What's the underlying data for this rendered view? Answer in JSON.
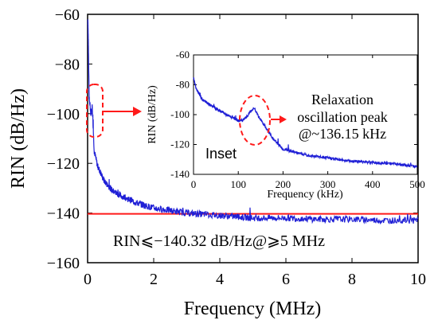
{
  "chart_data": [
    {
      "type": "line",
      "xlabel": "Frequency (MHz)",
      "ylabel": "RIN (dB/Hz)",
      "xlim": [
        0,
        10
      ],
      "ylim": [
        -160,
        -60
      ],
      "xticks": [
        "0",
        "2",
        "4",
        "6",
        "8",
        "10"
      ],
      "yticks": [
        "−160",
        "−140",
        "−120",
        "−100",
        "−80",
        "−60"
      ],
      "series": [
        {
          "color": "#1f1fd6",
          "x": [
            0.01,
            0.05,
            0.1,
            0.14,
            0.2,
            0.3,
            0.5,
            0.75,
            1.0,
            1.5,
            2.0,
            3.0,
            4.0,
            5.0,
            6.0,
            7.0,
            8.0,
            9.0,
            10.0
          ],
          "values": [
            -62,
            -94,
            -100,
            -97,
            -115,
            -121,
            -127,
            -131,
            -133,
            -136,
            -138,
            -140,
            -141,
            -142,
            -142,
            -142.5,
            -142.5,
            -143,
            -143
          ]
        }
      ],
      "reference_line": {
        "y": -140.32,
        "color": "#ff1a1a"
      },
      "annotation": "RIN⩽−140.32 dB/Hz@⩾5 MHz"
    },
    {
      "type": "line",
      "label": "Inset",
      "xlabel": "Frequency (kHz)",
      "ylabel": "RIN (dB/Hz)",
      "xlim": [
        0,
        500
      ],
      "ylim": [
        -140,
        -60
      ],
      "xticks": [
        "0",
        "100",
        "200",
        "300",
        "400",
        "500"
      ],
      "yticks": [
        "-140",
        "-120",
        "-100",
        "-80",
        "-60"
      ],
      "series": [
        {
          "color": "#1f1fd6",
          "x": [
            0,
            5,
            20,
            50,
            80,
            100,
            110,
            120,
            130,
            136.15,
            145,
            160,
            180,
            200,
            250,
            300,
            350,
            400,
            450,
            500
          ],
          "values": [
            -75,
            -82,
            -90,
            -96,
            -101,
            -104,
            -104,
            -101,
            -97,
            -96,
            -101,
            -108,
            -117,
            -123,
            -127,
            -129,
            -131,
            -132,
            -133,
            -135
          ]
        }
      ],
      "annotation": [
        "Relaxation",
        "oscillation peak",
        "@~136.15 kHz"
      ]
    }
  ]
}
